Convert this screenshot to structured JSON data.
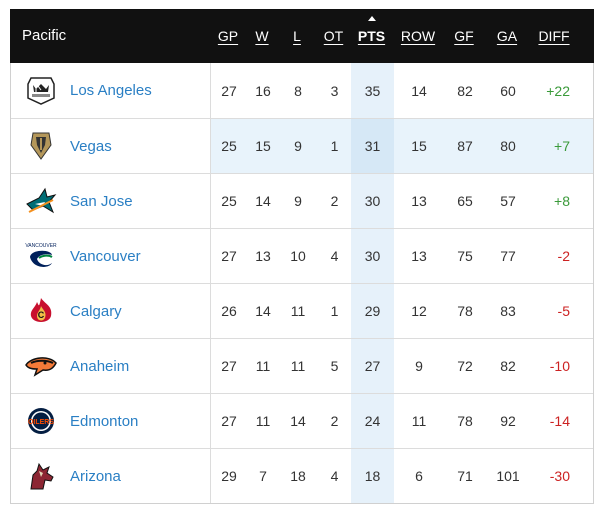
{
  "header": {
    "division": "Pacific",
    "columns": [
      "GP",
      "W",
      "L",
      "OT",
      "PTS",
      "ROW",
      "GF",
      "GA",
      "DIFF"
    ],
    "sorted_column": "PTS"
  },
  "colors": {
    "positive": "#3a9a3a",
    "negative": "#cc2222",
    "team_link": "#2a7fc4"
  },
  "teams": [
    {
      "name": "Los Angeles",
      "logo": "kings-logo-icon",
      "gp": "27",
      "w": "16",
      "l": "8",
      "ot": "3",
      "pts": "35",
      "row": "14",
      "gf": "82",
      "ga": "60",
      "diff": "+22"
    },
    {
      "name": "Vegas",
      "logo": "golden-knights-logo-icon",
      "gp": "25",
      "w": "15",
      "l": "9",
      "ot": "1",
      "pts": "31",
      "row": "15",
      "gf": "87",
      "ga": "80",
      "diff": "+7"
    },
    {
      "name": "San Jose",
      "logo": "sharks-logo-icon",
      "gp": "25",
      "w": "14",
      "l": "9",
      "ot": "2",
      "pts": "30",
      "row": "13",
      "gf": "65",
      "ga": "57",
      "diff": "+8"
    },
    {
      "name": "Vancouver",
      "logo": "canucks-logo-icon",
      "gp": "27",
      "w": "13",
      "l": "10",
      "ot": "4",
      "pts": "30",
      "row": "13",
      "gf": "75",
      "ga": "77",
      "diff": "-2"
    },
    {
      "name": "Calgary",
      "logo": "flames-logo-icon",
      "gp": "26",
      "w": "14",
      "l": "11",
      "ot": "1",
      "pts": "29",
      "row": "12",
      "gf": "78",
      "ga": "83",
      "diff": "-5"
    },
    {
      "name": "Anaheim",
      "logo": "ducks-logo-icon",
      "gp": "27",
      "w": "11",
      "l": "11",
      "ot": "5",
      "pts": "27",
      "row": "9",
      "gf": "72",
      "ga": "82",
      "diff": "-10"
    },
    {
      "name": "Edmonton",
      "logo": "oilers-logo-icon",
      "gp": "27",
      "w": "11",
      "l": "14",
      "ot": "2",
      "pts": "24",
      "row": "11",
      "gf": "78",
      "ga": "92",
      "diff": "-14"
    },
    {
      "name": "Arizona",
      "logo": "coyotes-logo-icon",
      "gp": "29",
      "w": "7",
      "l": "18",
      "ot": "4",
      "pts": "18",
      "row": "6",
      "gf": "71",
      "ga": "101",
      "diff": "-30"
    }
  ]
}
